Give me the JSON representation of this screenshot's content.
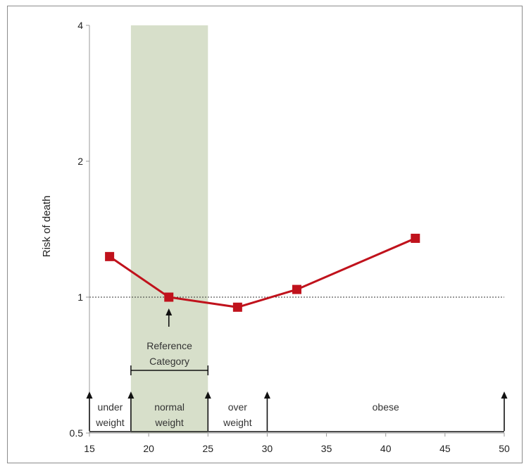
{
  "chart_data": {
    "type": "line",
    "title": "",
    "xlabel": "",
    "ylabel": "Risk of death",
    "y_scale": "log2",
    "xlim": [
      15,
      50
    ],
    "ylim": [
      0.5,
      4
    ],
    "x_ticks": [
      15,
      20,
      25,
      30,
      35,
      40,
      45,
      50
    ],
    "y_ticks": [
      0.5,
      1,
      2,
      4
    ],
    "series": [
      {
        "color": "#c0121c",
        "marker": "square",
        "points": [
          {
            "x": 16.7,
            "y": 1.23
          },
          {
            "x": 21.7,
            "y": 1.0
          },
          {
            "x": 27.5,
            "y": 0.95
          },
          {
            "x": 32.5,
            "y": 1.04
          },
          {
            "x": 42.5,
            "y": 1.35
          }
        ]
      }
    ],
    "reference_line": {
      "y": 1,
      "style": "dotted"
    },
    "shaded_band": {
      "x": [
        18.5,
        25
      ],
      "color": "#d7dfca"
    },
    "reference_point": {
      "x": 21.7,
      "label_lines": [
        "Reference",
        "Category"
      ],
      "bracket_x": [
        18.5,
        25
      ]
    },
    "categories": [
      {
        "label_lines": [
          "under",
          "weight"
        ],
        "x_start": 15,
        "x_end": 18.5
      },
      {
        "label_lines": [
          "normal",
          "weight"
        ],
        "x_start": 18.5,
        "x_end": 25
      },
      {
        "label_lines": [
          "over",
          "weight"
        ],
        "x_start": 25,
        "x_end": 30
      },
      {
        "label_lines": [
          "obese"
        ],
        "x_start": 30,
        "x_end": 50
      }
    ],
    "category_boundaries": [
      15,
      18.5,
      25,
      30,
      50
    ]
  }
}
